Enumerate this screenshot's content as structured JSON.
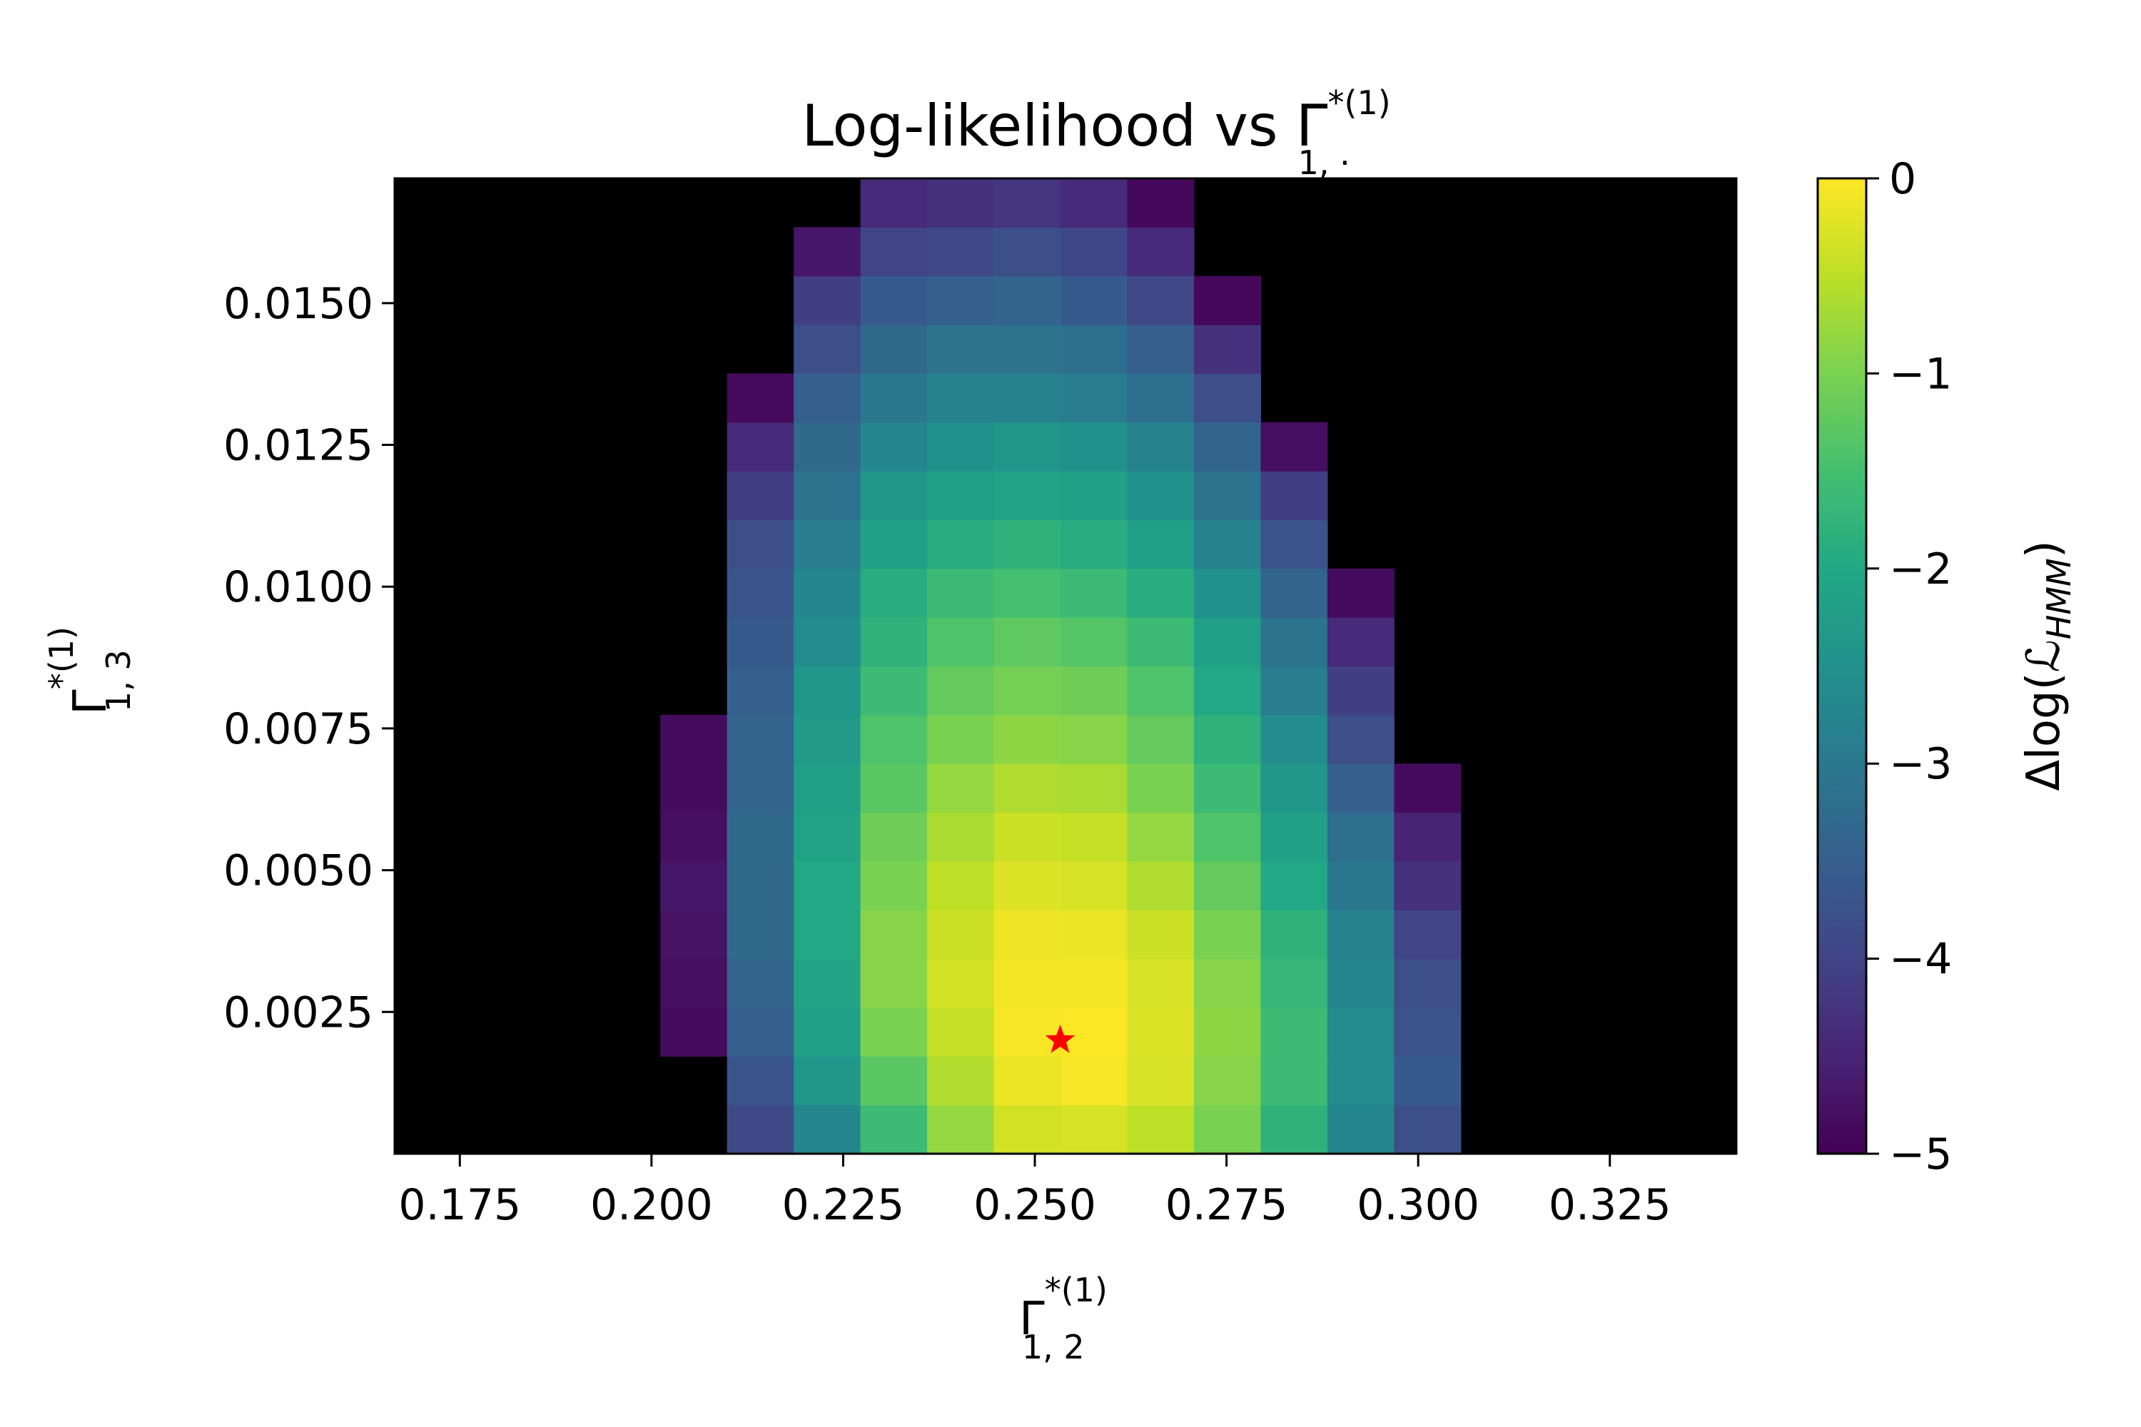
{
  "chart_data": {
    "type": "heatmap",
    "title": {
      "main": "Log-likelihood vs Γ",
      "sup": "*(1)",
      "sub": "1, ·"
    },
    "xlabel": {
      "main": "Γ",
      "sup": "*(1)",
      "sub": "1, 2"
    },
    "ylabel": {
      "main": "Γ",
      "sup": "*(1)",
      "sub": "1, 3"
    },
    "colorbar_label": {
      "prefix": "Δlog(",
      "script": "ℒ",
      "sub": "HMM",
      "suffix": ")"
    },
    "xlim": [
      0.1665,
      0.3415
    ],
    "ylim": [
      0.0,
      0.0172
    ],
    "x_ticks": [
      0.175,
      0.2,
      0.225,
      0.25,
      0.275,
      0.3,
      0.325
    ],
    "x_tick_labels": [
      "0.175",
      "0.200",
      "0.225",
      "0.250",
      "0.275",
      "0.300",
      "0.325"
    ],
    "y_ticks": [
      0.0025,
      0.005,
      0.0075,
      0.01,
      0.0125,
      0.015
    ],
    "y_tick_labels": [
      "0.0025",
      "0.0050",
      "0.0075",
      "0.0100",
      "0.0125",
      "0.0150"
    ],
    "color_range": [
      -5,
      0
    ],
    "colorbar_ticks": [
      0,
      -1,
      -2,
      -3,
      -4,
      -5
    ],
    "colorbar_tick_labels": [
      "0",
      "−1",
      "−2",
      "−3",
      "−4",
      "−5"
    ],
    "colormap": "viridis",
    "masked_color": "#000000",
    "x_centers": [
      0.2055,
      0.2142,
      0.2229,
      0.2316,
      0.2403,
      0.249,
      0.2577,
      0.2664,
      0.2751,
      0.2838,
      0.2925,
      0.3012
    ],
    "y_centers": [
      0.00043,
      0.00129,
      0.00215,
      0.00301,
      0.00387,
      0.00473,
      0.00559,
      0.00645,
      0.00731,
      0.00817,
      0.00903,
      0.00989,
      0.01075,
      0.01161,
      0.01247,
      0.01333,
      0.01419,
      0.01505,
      0.01591,
      0.01677
    ],
    "cell_width": 0.0087,
    "cell_height": 0.00086,
    "z": [
      [
        null,
        -3.9,
        -2.7,
        -1.6,
        -0.8,
        -0.35,
        -0.3,
        -0.5,
        -1.0,
        -1.8,
        -2.7,
        -3.8
      ],
      [
        null,
        -3.7,
        -2.4,
        -1.3,
        -0.6,
        -0.15,
        -0.05,
        -0.3,
        -0.9,
        -1.6,
        -2.6,
        -3.6
      ],
      [
        -4.85,
        -3.5,
        -2.2,
        -1.0,
        -0.45,
        -0.05,
        0.0,
        -0.25,
        -0.85,
        -1.6,
        -2.6,
        -3.7
      ],
      [
        -4.8,
        -3.4,
        -2.1,
        -0.9,
        -0.35,
        -0.08,
        -0.07,
        -0.3,
        -0.9,
        -1.7,
        -2.7,
        -3.8
      ],
      [
        -4.75,
        -3.3,
        -2.0,
        -0.9,
        -0.4,
        -0.12,
        -0.15,
        -0.4,
        -1.0,
        -1.8,
        -2.8,
        -4.0
      ],
      [
        -4.7,
        -3.3,
        -2.0,
        -1.0,
        -0.5,
        -0.25,
        -0.3,
        -0.6,
        -1.2,
        -2.0,
        -3.0,
        -4.3
      ],
      [
        -4.8,
        -3.3,
        -2.1,
        -1.1,
        -0.65,
        -0.4,
        -0.45,
        -0.8,
        -1.4,
        -2.2,
        -3.2,
        -4.5
      ],
      [
        -4.85,
        -3.4,
        -2.2,
        -1.3,
        -0.8,
        -0.6,
        -0.65,
        -1.0,
        -1.6,
        -2.4,
        -3.5,
        -4.85
      ],
      [
        -4.85,
        -3.4,
        -2.3,
        -1.4,
        -1.0,
        -0.85,
        -0.9,
        -1.2,
        -1.8,
        -2.6,
        -3.8,
        null
      ],
      [
        null,
        -3.5,
        -2.4,
        -1.6,
        -1.2,
        -1.05,
        -1.1,
        -1.4,
        -2.0,
        -2.9,
        -4.1,
        null
      ],
      [
        null,
        -3.6,
        -2.6,
        -1.8,
        -1.4,
        -1.25,
        -1.35,
        -1.6,
        -2.2,
        -3.1,
        -4.4,
        null
      ],
      [
        null,
        -3.7,
        -2.7,
        -1.9,
        -1.6,
        -1.5,
        -1.6,
        -1.9,
        -2.5,
        -3.4,
        -4.85,
        null
      ],
      [
        null,
        -3.8,
        -2.9,
        -2.2,
        -1.9,
        -1.8,
        -1.9,
        -2.2,
        -2.8,
        -3.7,
        null,
        null
      ],
      [
        null,
        -4.1,
        -3.1,
        -2.4,
        -2.2,
        -2.1,
        -2.2,
        -2.5,
        -3.1,
        -4.1,
        null,
        null
      ],
      [
        null,
        -4.4,
        -3.3,
        -2.7,
        -2.5,
        -2.4,
        -2.5,
        -2.8,
        -3.4,
        -4.8,
        null,
        null
      ],
      [
        null,
        -4.85,
        -3.5,
        -3.0,
        -2.8,
        -2.8,
        -2.9,
        -3.2,
        -3.8,
        null,
        null,
        null
      ],
      [
        null,
        null,
        -3.8,
        -3.3,
        -3.1,
        -3.1,
        -3.2,
        -3.5,
        -4.3,
        null,
        null,
        null
      ],
      [
        null,
        null,
        -4.1,
        -3.6,
        -3.5,
        -3.4,
        -3.6,
        -3.9,
        -4.9,
        null,
        null,
        null
      ],
      [
        null,
        null,
        -4.7,
        -4.0,
        -3.9,
        -3.8,
        -3.95,
        -4.4,
        null,
        null,
        null,
        null
      ],
      [
        null,
        null,
        null,
        -4.4,
        -4.3,
        -4.25,
        -4.4,
        -4.9,
        null,
        null,
        null,
        null
      ]
    ],
    "marker": {
      "x": 0.2533,
      "y": 0.002,
      "symbol": "star",
      "color": "#ff0000"
    },
    "grid": false
  }
}
